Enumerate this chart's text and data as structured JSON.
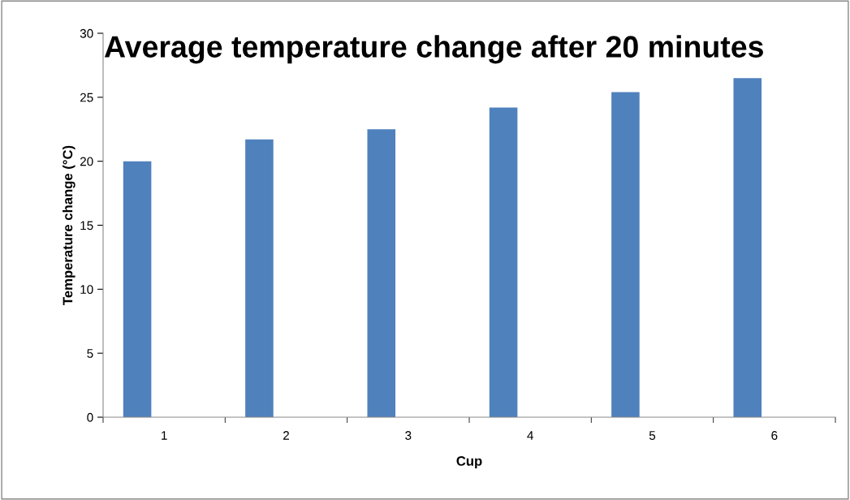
{
  "chart_data": {
    "type": "bar",
    "title": "Average temperature change after 20 minutes",
    "xlabel": "Cup",
    "ylabel": "Temperature change (°C)",
    "categories": [
      "1",
      "2",
      "3",
      "4",
      "5",
      "6"
    ],
    "values": [
      20.0,
      21.7,
      22.5,
      24.2,
      25.4,
      26.5
    ],
    "color": "#4f81bd",
    "ylim": [
      0,
      30
    ],
    "yticks": [
      0,
      5,
      10,
      15,
      20,
      25,
      30
    ],
    "grid": false
  }
}
